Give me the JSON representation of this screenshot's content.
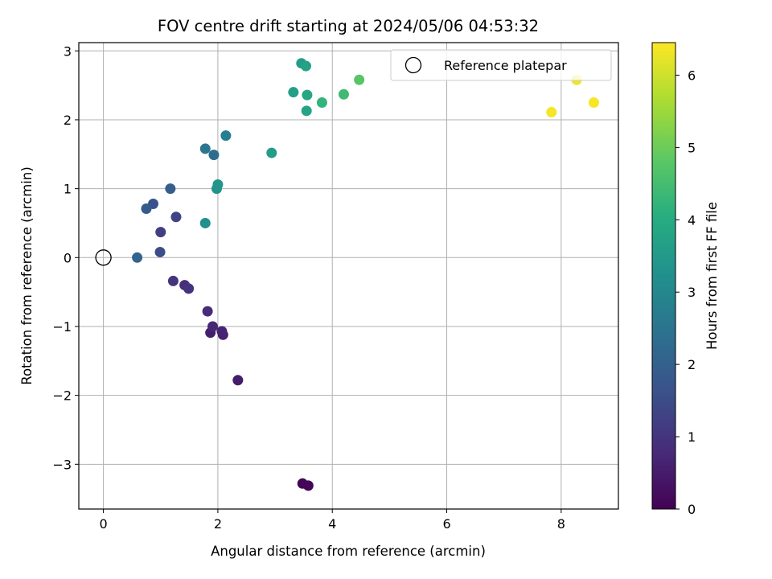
{
  "chart_data": {
    "type": "scatter",
    "title": "FOV centre drift starting at 2024/05/06 04:53:32",
    "xlabel": "Angular distance from reference (arcmin)",
    "ylabel": "Rotation from reference (arcmin)",
    "xlim": [
      -0.43,
      9.0
    ],
    "ylim": [
      -3.65,
      3.12
    ],
    "xticks": [
      0,
      2,
      4,
      6,
      8
    ],
    "yticks": [
      -3,
      -2,
      -1,
      0,
      1,
      2,
      3
    ],
    "xtick_labels": [
      "0",
      "2",
      "4",
      "6",
      "8"
    ],
    "ytick_labels": [
      "−3",
      "−2",
      "−1",
      "0",
      "1",
      "2",
      "3"
    ],
    "grid": true,
    "legend": {
      "position": "top-right",
      "entries": [
        "Reference platepar"
      ]
    },
    "reference_point": {
      "x": 0,
      "y": 0,
      "label": "Reference platepar"
    },
    "colorbar": {
      "label": "Hours from first FF file",
      "range": [
        0,
        6.45
      ],
      "ticks": [
        0,
        1,
        2,
        3,
        4,
        5,
        6
      ],
      "tick_labels": [
        "0",
        "1",
        "2",
        "3",
        "4",
        "5",
        "6"
      ],
      "colormap": "viridis"
    },
    "points": [
      {
        "x": 3.48,
        "y": -3.28,
        "c": 0.05
      },
      {
        "x": 3.58,
        "y": -3.31,
        "c": 0.1
      },
      {
        "x": 2.35,
        "y": -1.78,
        "c": 0.5
      },
      {
        "x": 1.87,
        "y": -1.09,
        "c": 0.55
      },
      {
        "x": 2.09,
        "y": -1.12,
        "c": 0.6
      },
      {
        "x": 2.07,
        "y": -1.07,
        "c": 0.65
      },
      {
        "x": 1.91,
        "y": -1.0,
        "c": 0.7
      },
      {
        "x": 1.82,
        "y": -0.78,
        "c": 0.8
      },
      {
        "x": 1.42,
        "y": -0.4,
        "c": 0.9
      },
      {
        "x": 1.49,
        "y": -0.45,
        "c": 0.95
      },
      {
        "x": 1.22,
        "y": -0.34,
        "c": 1.0
      },
      {
        "x": 1.0,
        "y": 0.37,
        "c": 1.2
      },
      {
        "x": 1.27,
        "y": 0.59,
        "c": 1.3
      },
      {
        "x": 0.99,
        "y": 0.08,
        "c": 1.55
      },
      {
        "x": 0.87,
        "y": 0.78,
        "c": 1.65
      },
      {
        "x": 0.75,
        "y": 0.71,
        "c": 1.85
      },
      {
        "x": 1.17,
        "y": 1.0,
        "c": 1.95
      },
      {
        "x": 0.59,
        "y": 0.0,
        "c": 2.1
      },
      {
        "x": 1.93,
        "y": 1.49,
        "c": 2.3
      },
      {
        "x": 1.78,
        "y": 1.58,
        "c": 2.55
      },
      {
        "x": 2.14,
        "y": 1.77,
        "c": 2.75
      },
      {
        "x": 1.78,
        "y": 0.5,
        "c": 3.2
      },
      {
        "x": 1.98,
        "y": 1.0,
        "c": 3.3
      },
      {
        "x": 2.0,
        "y": 1.06,
        "c": 3.4
      },
      {
        "x": 2.94,
        "y": 1.52,
        "c": 3.55
      },
      {
        "x": 3.32,
        "y": 2.4,
        "c": 3.65
      },
      {
        "x": 3.55,
        "y": 2.13,
        "c": 3.75
      },
      {
        "x": 3.56,
        "y": 2.36,
        "c": 3.85
      },
      {
        "x": 3.46,
        "y": 2.82,
        "c": 3.6
      },
      {
        "x": 3.54,
        "y": 2.78,
        "c": 3.7
      },
      {
        "x": 3.82,
        "y": 2.25,
        "c": 4.2
      },
      {
        "x": 4.2,
        "y": 2.37,
        "c": 4.4
      },
      {
        "x": 4.47,
        "y": 2.58,
        "c": 4.75
      },
      {
        "x": 7.83,
        "y": 2.11,
        "c": 6.35
      },
      {
        "x": 8.27,
        "y": 2.58,
        "c": 6.3
      },
      {
        "x": 8.57,
        "y": 2.25,
        "c": 6.4
      }
    ]
  }
}
